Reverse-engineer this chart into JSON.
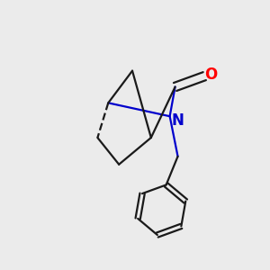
{
  "background_color": "#ebebeb",
  "bond_color": "#1a1a1a",
  "N_color": "#0000cc",
  "O_color": "#ff0000",
  "bond_width": 1.6,
  "font_size_atom": 12
}
